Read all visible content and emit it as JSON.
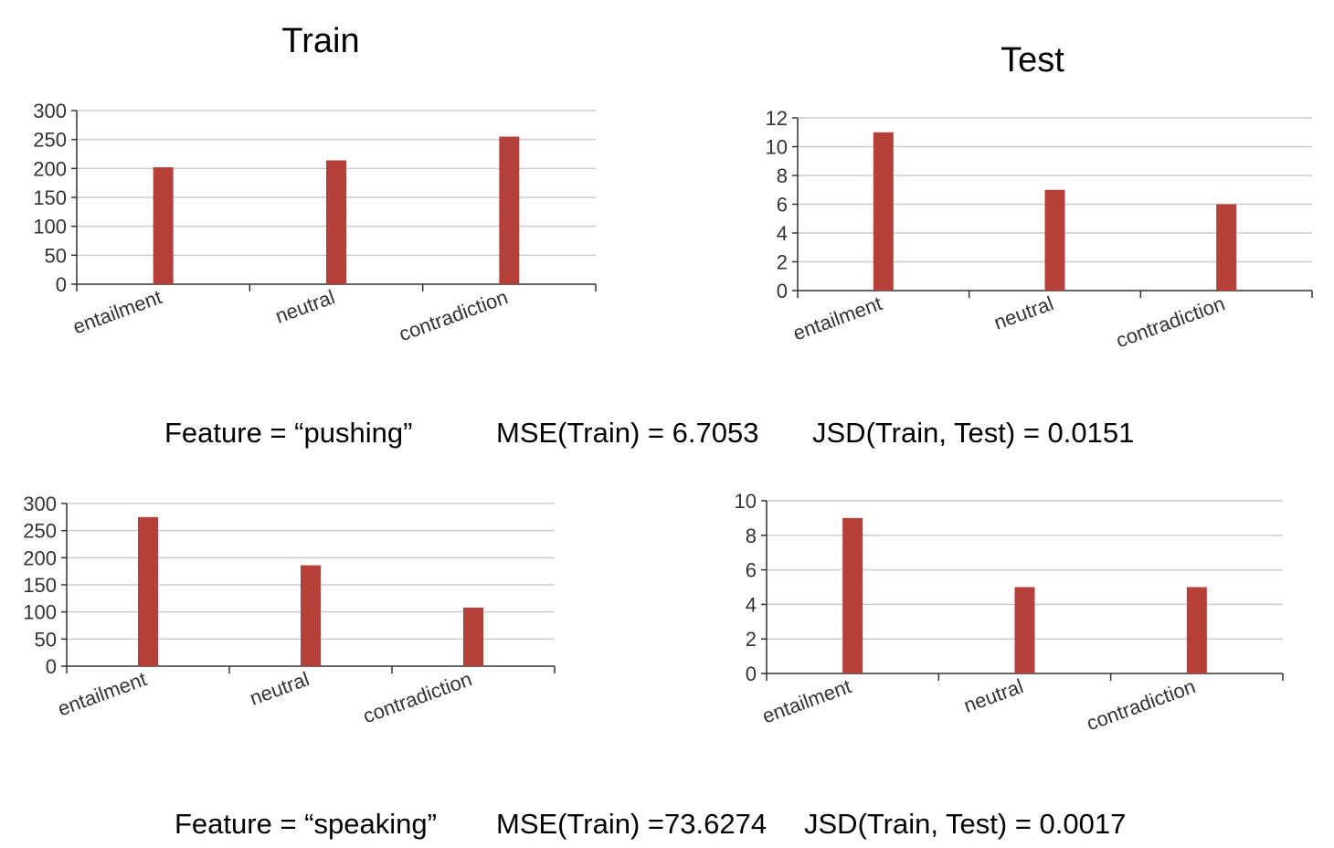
{
  "panel_titles": {
    "train": "Train",
    "test": "Test"
  },
  "captions": [
    {
      "feature": "Feature = “pushing”",
      "mse": "MSE(Train) = 6.7053",
      "jsd": "JSD(Train, Test) = 0.0151"
    },
    {
      "feature": "Feature = “speaking”",
      "mse": "MSE(Train) =73.6274",
      "jsd": "JSD(Train, Test) = 0.0017"
    }
  ],
  "colors": {
    "bar": "#b5403a",
    "grid": "#cccccc",
    "axis": "#333333"
  },
  "chart_data": [
    {
      "type": "bar",
      "panel": "pushing-train",
      "title": "Train",
      "categories": [
        "entailment",
        "neutral",
        "contradiction"
      ],
      "values": [
        202,
        214,
        255
      ],
      "ylim": [
        0,
        300
      ],
      "yticks": [
        0,
        50,
        100,
        150,
        200,
        250,
        300
      ],
      "grid": true
    },
    {
      "type": "bar",
      "panel": "pushing-test",
      "title": "Test",
      "categories": [
        "entailment",
        "neutral",
        "contradiction"
      ],
      "values": [
        11,
        7,
        6
      ],
      "ylim": [
        0,
        12
      ],
      "yticks": [
        0,
        2,
        4,
        6,
        8,
        10,
        12
      ],
      "grid": true
    },
    {
      "type": "bar",
      "panel": "speaking-train",
      "title": "",
      "categories": [
        "entailment",
        "neutral",
        "contradiction"
      ],
      "values": [
        275,
        186,
        108
      ],
      "ylim": [
        0,
        300
      ],
      "yticks": [
        0,
        50,
        100,
        150,
        200,
        250,
        300
      ],
      "grid": true
    },
    {
      "type": "bar",
      "panel": "speaking-test",
      "title": "",
      "categories": [
        "entailment",
        "neutral",
        "contradiction"
      ],
      "values": [
        9,
        5,
        5
      ],
      "ylim": [
        0,
        10
      ],
      "yticks": [
        0,
        2,
        4,
        6,
        8,
        10
      ],
      "grid": true
    }
  ]
}
